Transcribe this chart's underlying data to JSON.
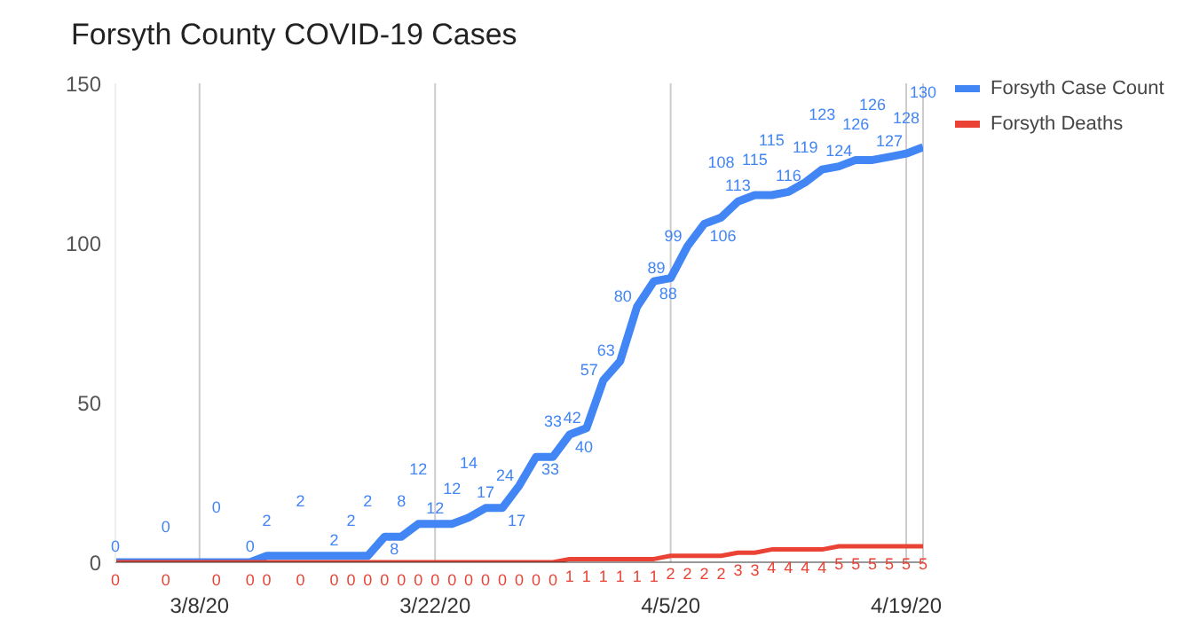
{
  "chart_data": {
    "type": "line",
    "title": "Forsyth County COVID-19 Cases",
    "x": [
      "--03-03",
      "--03-06",
      "--03-09",
      "--03-11",
      "--03-12",
      "--03-14",
      "--03-16",
      "--03-17",
      "--03-18",
      "--03-19",
      "--03-20",
      "--03-21",
      "--03-22",
      "--03-23",
      "--03-24",
      "--03-25",
      "--03-26",
      "--03-27",
      "--03-28",
      "--03-29",
      "--03-30",
      "--03-31",
      "--04-01",
      "--04-02",
      "--04-03",
      "--04-04",
      "--04-05",
      "--04-06",
      "--04-07",
      "--04-08",
      "--04-09",
      "--04-10",
      "--04-11",
      "--04-12",
      "--04-13",
      "--04-14",
      "--04-15",
      "--04-16",
      "--04-17",
      "--04-18",
      "--04-19",
      "--04-20"
    ],
    "series": [
      {
        "name": "Forsyth Case Count",
        "color": "#4285f4",
        "values": [
          0,
          0,
          0,
          0,
          2,
          2,
          2,
          2,
          2,
          8,
          8,
          12,
          12,
          12,
          14,
          17,
          17,
          24,
          33,
          33,
          40,
          42,
          57,
          63,
          80,
          88,
          89,
          99,
          106,
          108,
          113,
          115,
          115,
          116,
          119,
          123,
          124,
          126,
          126,
          127,
          128,
          130
        ]
      },
      {
        "name": "Forsyth Deaths",
        "color": "#ea4335",
        "values": [
          0,
          0,
          0,
          0,
          0,
          0,
          0,
          0,
          0,
          0,
          0,
          0,
          0,
          0,
          0,
          0,
          0,
          0,
          0,
          0,
          1,
          1,
          1,
          1,
          1,
          1,
          2,
          2,
          2,
          2,
          3,
          3,
          4,
          4,
          4,
          4,
          5,
          5,
          5,
          5,
          5,
          5
        ]
      }
    ],
    "xlim": [
      "--03-03",
      "--04-20"
    ],
    "xticks": [
      {
        "value": "--03-08",
        "label": "3/8/20"
      },
      {
        "value": "--03-22",
        "label": "3/22/20"
      },
      {
        "value": "--04-05",
        "label": "4/5/20"
      },
      {
        "value": "--04-19",
        "label": "4/19/20"
      }
    ],
    "ylim": [
      0,
      150
    ],
    "yticks": [
      0,
      50,
      100,
      150
    ],
    "grid": "x",
    "legend": "top right",
    "marker": "none",
    "line_style": "solid",
    "data_labels": true
  }
}
